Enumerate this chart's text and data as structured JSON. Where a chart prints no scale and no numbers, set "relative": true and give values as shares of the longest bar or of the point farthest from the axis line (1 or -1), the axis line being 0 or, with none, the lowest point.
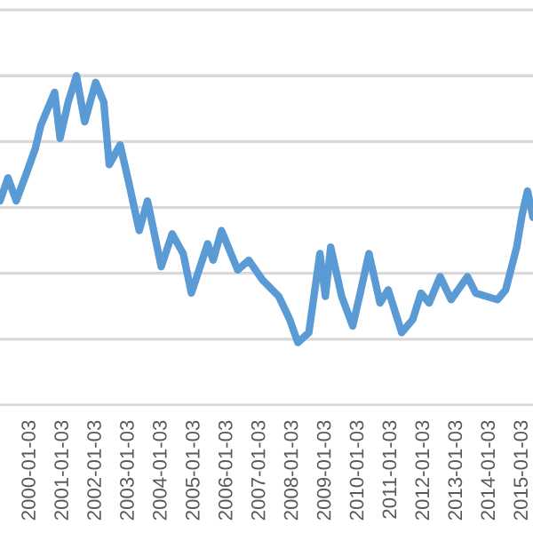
{
  "chart_data": {
    "type": "line",
    "relative": true,
    "grid": "y",
    "line_style": "solid",
    "marker": "none",
    "x": [
      "1999-02",
      "1999-05",
      "1999-08",
      "1999-12",
      "2000-03",
      "2000-05",
      "2000-10",
      "2000-12",
      "2001-03",
      "2001-06",
      "2001-09",
      "2002-01",
      "2002-04",
      "2002-06",
      "2002-10",
      "2003-01",
      "2003-05",
      "2003-08",
      "2004-01",
      "2004-05",
      "2004-09",
      "2004-12",
      "2005-06",
      "2005-08",
      "2005-11",
      "2006-05",
      "2006-09",
      "2007-02",
      "2007-08",
      "2007-12",
      "2008-03",
      "2008-07",
      "2008-11",
      "2009-01",
      "2009-03",
      "2009-07",
      "2009-11",
      "2010-02",
      "2010-05",
      "2010-09",
      "2010-12",
      "2011-05",
      "2011-09",
      "2011-12",
      "2012-03",
      "2012-07",
      "2012-11",
      "2013-05",
      "2013-08",
      "2014-04",
      "2014-07",
      "2014-11",
      "2015-01",
      "2015-03",
      "2015-05"
    ],
    "series": [
      {
        "color": "#5b9bd5",
        "values": [
          0.62,
          0.69,
          0.62,
          0.71,
          0.78,
          0.85,
          0.95,
          0.81,
          0.92,
          1,
          0.86,
          0.98,
          0.92,
          0.73,
          0.79,
          0.68,
          0.53,
          0.62,
          0.42,
          0.52,
          0.46,
          0.34,
          0.49,
          0.44,
          0.53,
          0.41,
          0.44,
          0.38,
          0.33,
          0.26,
          0.19,
          0.22,
          0.46,
          0.33,
          0.48,
          0.33,
          0.24,
          0.35,
          0.46,
          0.31,
          0.35,
          0.22,
          0.26,
          0.34,
          0.31,
          0.39,
          0.32,
          0.39,
          0.34,
          0.32,
          0.35,
          0.48,
          0.58,
          0.65,
          0.57
        ]
      }
    ],
    "xlim": [
      "1999-02",
      "2015-05"
    ],
    "xticks": [
      "2000-01-03",
      "2001-01-03",
      "2002-01-03",
      "2003-01-03",
      "2004-01-03",
      "2005-01-03",
      "2006-01-03",
      "2007-01-03",
      "2008-01-03",
      "2009-01-03",
      "2010-01-03",
      "2011-01-03",
      "2012-01-03",
      "2013-01-03",
      "2014-01-03",
      "2015-01-03"
    ]
  }
}
